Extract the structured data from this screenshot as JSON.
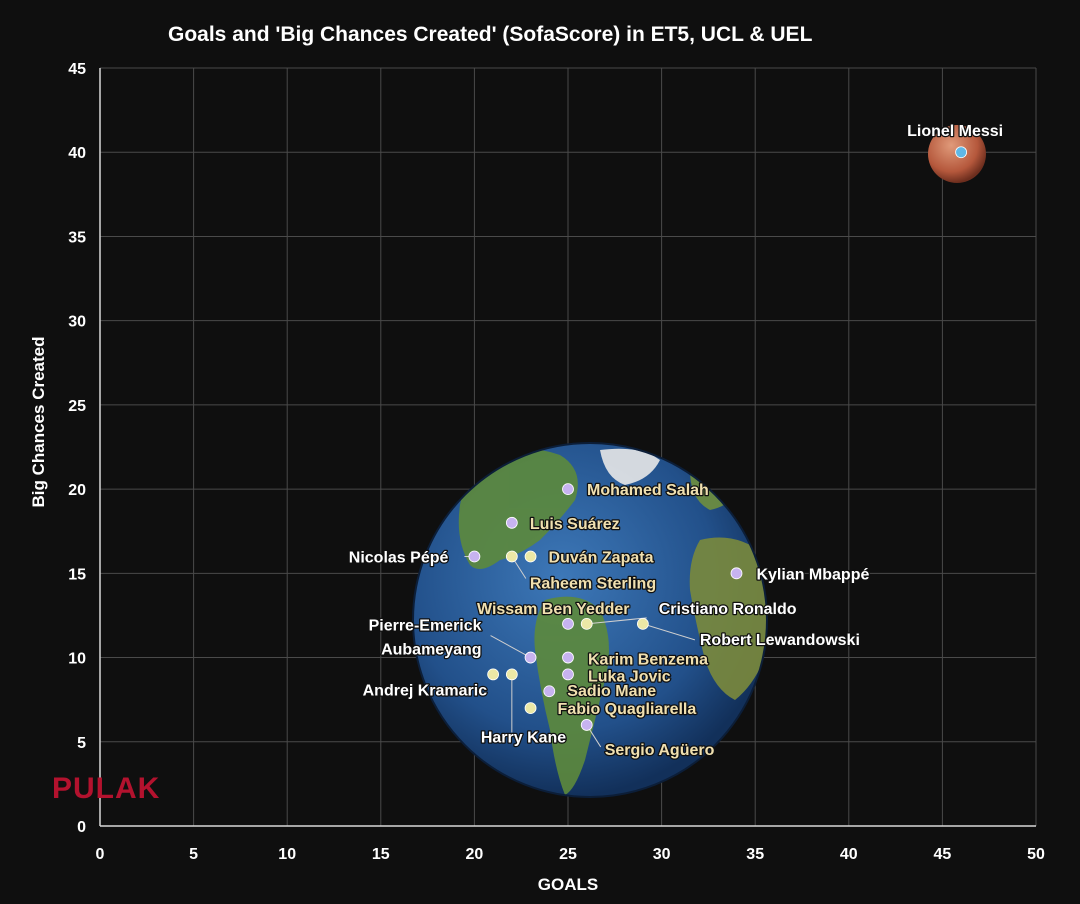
{
  "chart_data": {
    "type": "scatter",
    "title": "Goals and 'Big Chances  Created' (SofaScore)  in ET5, UCL & UEL",
    "xlabel": "GOALS",
    "ylabel": "Big Chances Created",
    "xlim": [
      0,
      50
    ],
    "ylim": [
      0,
      45
    ],
    "xticks": [
      0,
      5,
      10,
      15,
      20,
      25,
      30,
      35,
      40,
      45,
      50
    ],
    "yticks": [
      0,
      5,
      10,
      15,
      20,
      25,
      30,
      35,
      40,
      45
    ],
    "grid": true,
    "points": [
      {
        "name": "Lionel Messi",
        "x": 46,
        "y": 40
      },
      {
        "name": "Mohamed Salah",
        "x": 25,
        "y": 20
      },
      {
        "name": "Luis Suárez",
        "x": 22,
        "y": 18
      },
      {
        "name": "Nicolas Pépé",
        "x": 20,
        "y": 16
      },
      {
        "name": "Raheem Sterling",
        "x": 22,
        "y": 16
      },
      {
        "name": "Duván Zapata",
        "x": 23,
        "y": 16
      },
      {
        "name": "Kylian Mbappé",
        "x": 34,
        "y": 15
      },
      {
        "name": "Wissam Ben Yedder",
        "x": 25,
        "y": 12
      },
      {
        "name": "Cristiano Ronaldo",
        "x": 26,
        "y": 12
      },
      {
        "name": "Robert Lewandowski",
        "x": 29,
        "y": 12
      },
      {
        "name": "Pierre-Emerick Aubameyang",
        "x": 23,
        "y": 10
      },
      {
        "name": "Karim Benzema",
        "x": 25,
        "y": 10
      },
      {
        "name": "Andrej Kramaric",
        "x": 21,
        "y": 9
      },
      {
        "name": "Harry Kane",
        "x": 22,
        "y": 9
      },
      {
        "name": "Luka Jovic",
        "x": 25,
        "y": 9
      },
      {
        "name": "Sadio Mane",
        "x": 24,
        "y": 8
      },
      {
        "name": "Fabio Quagliarella",
        "x": 23,
        "y": 7
      },
      {
        "name": "Sergio Agüero",
        "x": 26,
        "y": 6
      }
    ]
  },
  "watermark": "PULAK",
  "colors": {
    "background": "#0f0f0f",
    "lavender_point": "#c7b3f0",
    "yellow_point": "#ece8a6",
    "lavender_label": "#d9c8ff",
    "yellow_label": "#f0e0b0",
    "messi_point": "#5fb8e6",
    "globe_ocean": "#2b5e9a"
  }
}
